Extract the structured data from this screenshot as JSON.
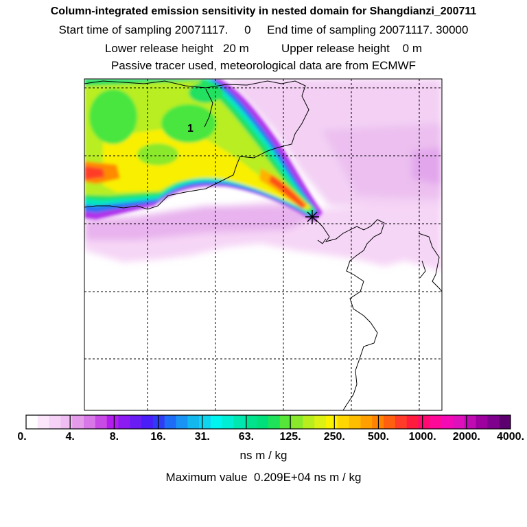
{
  "titles": {
    "line1": "Column-integrated emission sensitivity in nested domain for Shangdianzi_200711",
    "line2": "Start time of sampling 20071117.     0     End time of sampling 20071117. 30000",
    "line3": "Lower release height   20 m          Upper release height    0 m",
    "line4": "Passive tracer used, meteorological data are from ECMWF"
  },
  "map": {
    "label": "1",
    "release_marker": "asterisk-marker",
    "grid": "dashed"
  },
  "colorbar": {
    "tick_labels": [
      "0.",
      "4.",
      "8.",
      "16.",
      "31.",
      "63.",
      "125.",
      "250.",
      "500.",
      "1000.",
      "2000.",
      "4000."
    ],
    "colors": [
      "#ffffff",
      "#fbe6fb",
      "#f6d2f6",
      "#efbdf1",
      "#e49cea",
      "#d877e8",
      "#c94be6",
      "#b11eee",
      "#8c1bf3",
      "#6a1cf4",
      "#4a1ef6",
      "#2f3cf6",
      "#1f6cf6",
      "#1a94f4",
      "#12b8ee",
      "#0fd5ef",
      "#00f4f0",
      "#00eed4",
      "#00e8b0",
      "#00e28c",
      "#00e07a",
      "#1ee25a",
      "#56e63a",
      "#8ae92b",
      "#b8ee1d",
      "#dcf214",
      "#fbf200",
      "#ffd700",
      "#ffbd00",
      "#ffa000",
      "#ff8200",
      "#ff6010",
      "#ff3c28",
      "#ff1c3c",
      "#ff0a70",
      "#ff0a98",
      "#f40ab4",
      "#de10bc",
      "#c00ab2",
      "#9e00a0",
      "#7e008c",
      "#5c0070"
    ],
    "unit": "ns m / kg",
    "max_value_text": "Maximum value  0.209E+04 ns m / kg"
  }
}
